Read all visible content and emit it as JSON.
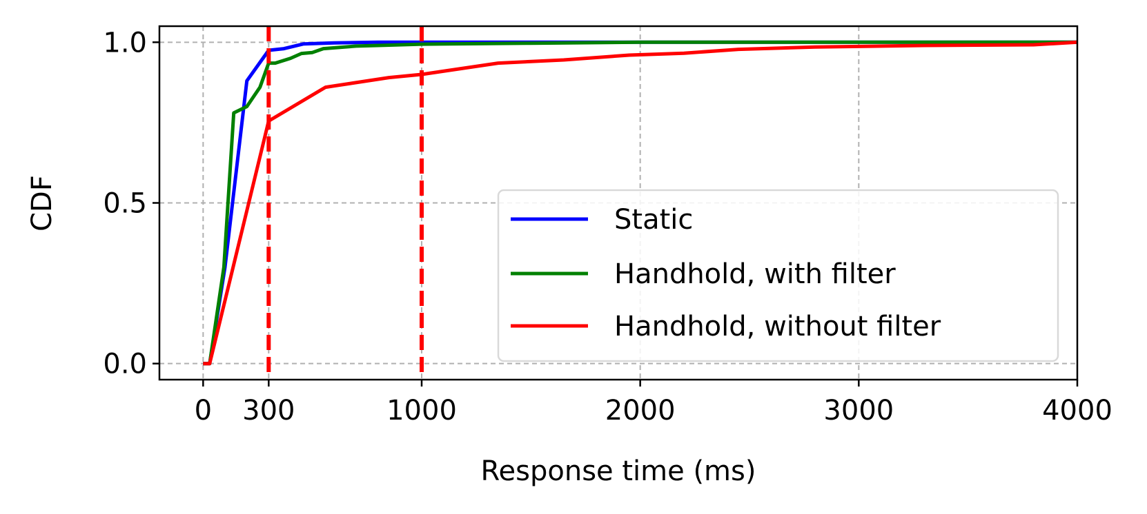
{
  "chart_data": {
    "type": "line",
    "title": "",
    "xlabel": "Response time (ms)",
    "ylabel": "CDF",
    "xlim": [
      -200,
      4000
    ],
    "ylim": [
      -0.05,
      1.05
    ],
    "xticks": [
      0,
      300,
      1000,
      2000,
      3000,
      4000
    ],
    "xtick_labels": [
      "0",
      "300",
      "1000",
      "2000",
      "3000",
      "4000"
    ],
    "yticks": [
      0.0,
      0.5,
      1.0
    ],
    "ytick_labels": [
      "0.0",
      "0.5",
      "1.0"
    ],
    "grid": true,
    "legend_position": "lower-right",
    "vlines": [
      {
        "x": 300,
        "color": "#ff0000",
        "style": "dashed"
      },
      {
        "x": 1000,
        "color": "#ff0000",
        "style": "dashed"
      }
    ],
    "series": [
      {
        "name": "Static",
        "color": "#0000ff",
        "x": [
          0,
          30,
          100,
          200,
          300,
          370,
          460,
          600,
          800,
          1000,
          4000
        ],
        "y": [
          0,
          0,
          0.3,
          0.88,
          0.975,
          0.98,
          0.995,
          0.998,
          1.0,
          1.0,
          1.0
        ]
      },
      {
        "name": "Handhold, with filter",
        "color": "#008000",
        "x": [
          0,
          30,
          95,
          140,
          200,
          260,
          300,
          330,
          400,
          450,
          500,
          550,
          700,
          800,
          1000,
          1500,
          2000,
          4000
        ],
        "y": [
          0,
          0,
          0.3,
          0.78,
          0.8,
          0.86,
          0.935,
          0.935,
          0.95,
          0.965,
          0.968,
          0.98,
          0.988,
          0.99,
          0.994,
          0.997,
          1.0,
          1.0
        ]
      },
      {
        "name": "Handhold, without filter",
        "color": "#ff0000",
        "x": [
          0,
          30,
          300,
          560,
          850,
          1000,
          1350,
          1650,
          1950,
          2200,
          2450,
          2800,
          3300,
          3800,
          4000
        ],
        "y": [
          0,
          0,
          0.755,
          0.86,
          0.89,
          0.9,
          0.935,
          0.945,
          0.96,
          0.966,
          0.978,
          0.985,
          0.99,
          0.992,
          1.0
        ]
      }
    ]
  }
}
